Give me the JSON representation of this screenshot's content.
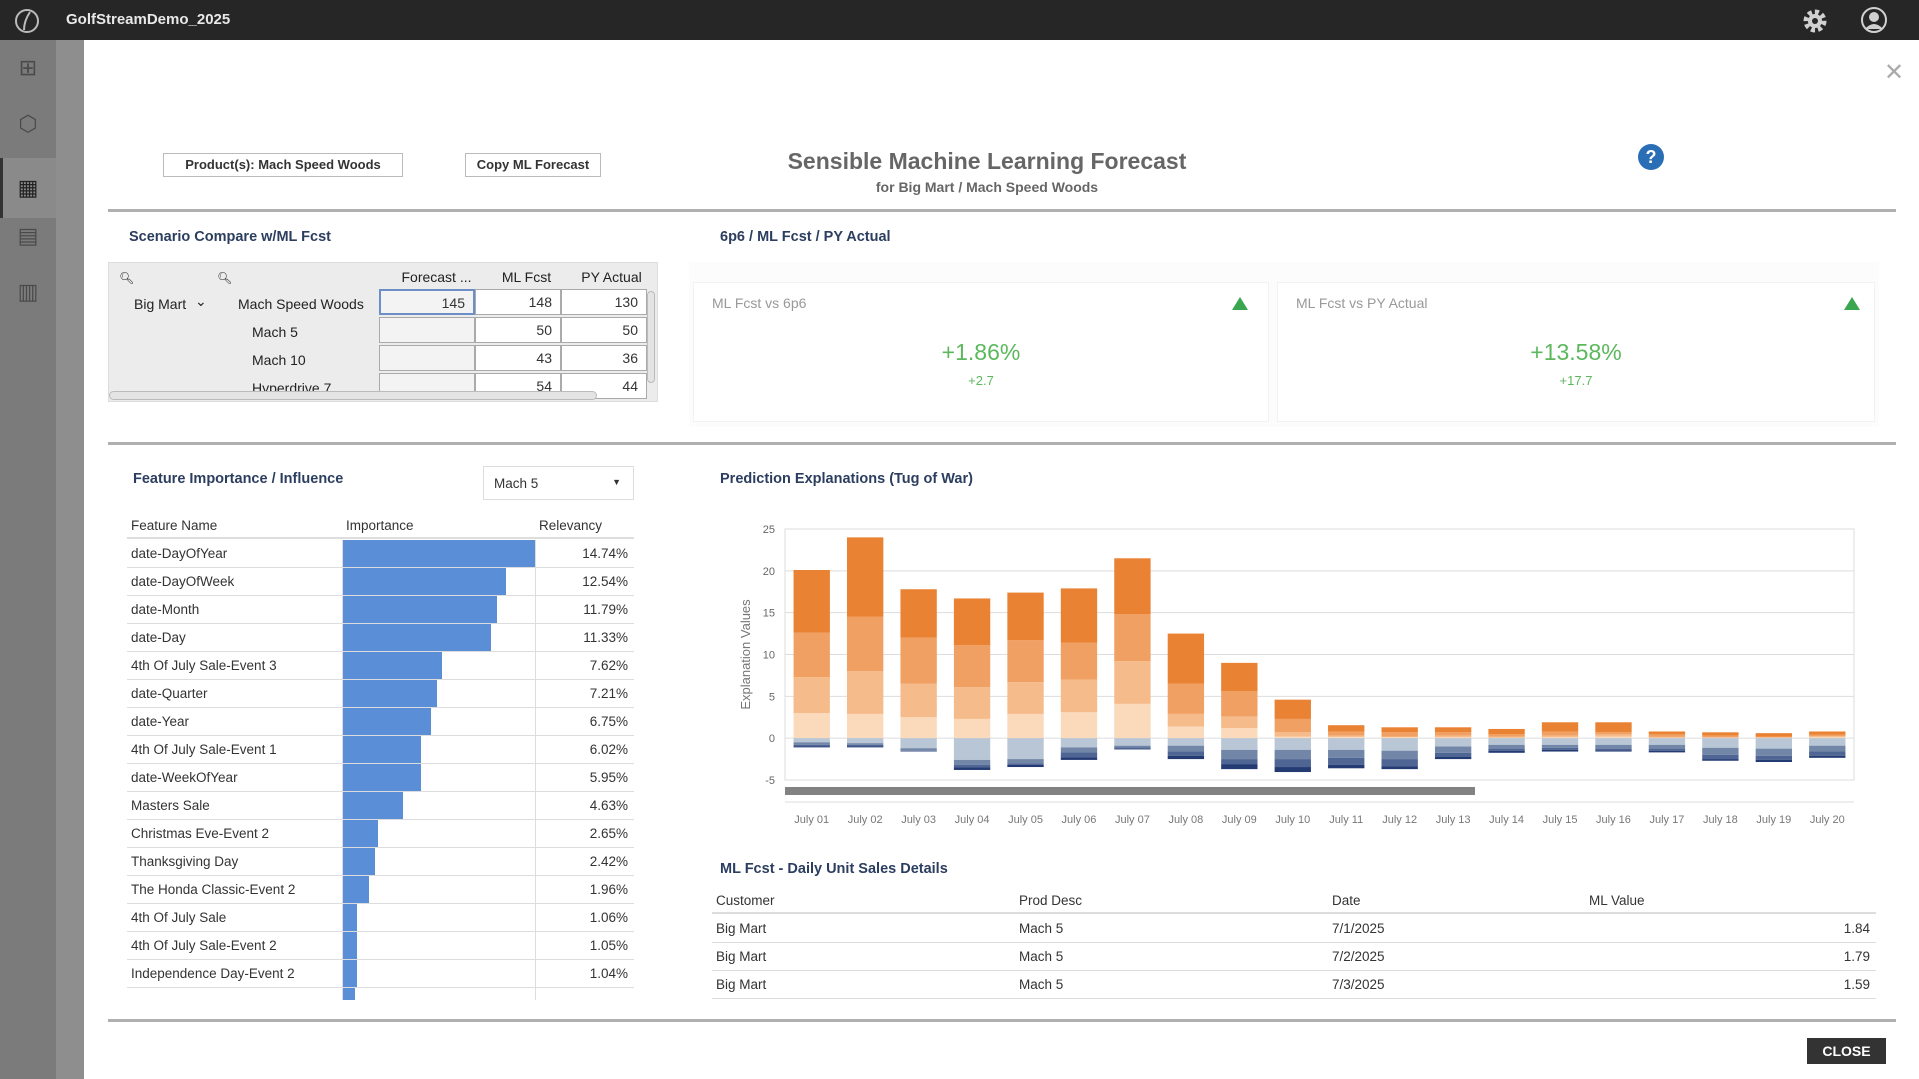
{
  "app": {
    "title": "GolfStreamDemo_2025"
  },
  "sidebar": {
    "icons": [
      "hierarchy-icon",
      "cube-icon",
      "dashboard-icon",
      "document-icon",
      "carousel-icon"
    ]
  },
  "header": {
    "product_button": "Product(s): Mach Speed Woods",
    "copy_button": "Copy ML Forecast",
    "title": "Sensible Machine Learning Forecast",
    "subtitle": "for Big Mart / Mach Speed Woods",
    "close_label": "CLOSE"
  },
  "scenario": {
    "title": "Scenario Compare w/ML Fcst",
    "columns": [
      "Forecast ...",
      "ML Fcst",
      "PY Actual"
    ],
    "rows": [
      {
        "customer": "Big Mart",
        "product": "Mach Speed Woods",
        "forecast": "145",
        "ml": "148",
        "py": "130"
      },
      {
        "customer": "",
        "product": "Mach 5",
        "forecast": "",
        "ml": "50",
        "py": "50"
      },
      {
        "customer": "",
        "product": "Mach 10",
        "forecast": "",
        "ml": "43",
        "py": "36"
      },
      {
        "customer": "",
        "product": "Hyperdrive 7",
        "forecast": "",
        "ml": "54",
        "py": "44"
      }
    ]
  },
  "kpi": {
    "title": "6p6 / ML Fcst / PY Actual",
    "cards": [
      {
        "label": "ML Fcst vs 6p6",
        "value": "+1.86%",
        "delta": "+2.7",
        "trend": "up"
      },
      {
        "label": "ML Fcst vs PY Actual",
        "value": "+13.58%",
        "delta": "+17.7",
        "trend": "up"
      }
    ],
    "up_color": "#3aa64f"
  },
  "features": {
    "title": "Feature Importance / Influence",
    "selected": "Mach 5",
    "columns": [
      "Feature Name",
      "Importance",
      "Relevancy"
    ],
    "bar_color": "#5a8fd8",
    "rows": [
      {
        "name": "date-DayOfYear",
        "value": 14.74,
        "label": "14.74%"
      },
      {
        "name": "date-DayOfWeek",
        "value": 12.54,
        "label": "12.54%"
      },
      {
        "name": "date-Month",
        "value": 11.79,
        "label": "11.79%"
      },
      {
        "name": "date-Day",
        "value": 11.33,
        "label": "11.33%"
      },
      {
        "name": "4th Of July Sale-Event 3",
        "value": 7.62,
        "label": "7.62%"
      },
      {
        "name": "date-Quarter",
        "value": 7.21,
        "label": "7.21%"
      },
      {
        "name": "date-Year",
        "value": 6.75,
        "label": "6.75%"
      },
      {
        "name": "4th Of July Sale-Event 1",
        "value": 6.02,
        "label": "6.02%"
      },
      {
        "name": "date-WeekOfYear",
        "value": 5.95,
        "label": "5.95%"
      },
      {
        "name": "Masters Sale",
        "value": 4.63,
        "label": "4.63%"
      },
      {
        "name": "Christmas Eve-Event 2",
        "value": 2.65,
        "label": "2.65%"
      },
      {
        "name": "Thanksgiving Day",
        "value": 2.42,
        "label": "2.42%"
      },
      {
        "name": "The Honda Classic-Event 2",
        "value": 1.96,
        "label": "1.96%"
      },
      {
        "name": "4th Of July Sale",
        "value": 1.06,
        "label": "1.06%"
      },
      {
        "name": "4th Of July Sale-Event 2",
        "value": 1.05,
        "label": "1.05%"
      },
      {
        "name": "Independence Day-Event 2",
        "value": 1.04,
        "label": "1.04%"
      }
    ]
  },
  "chart_data": {
    "type": "bar",
    "stacked": true,
    "title": "Prediction Explanations (Tug of War)",
    "ylabel": "Explanation Values",
    "xlabel": "",
    "ylim": [
      -5,
      25
    ],
    "yticks": [
      -5,
      0,
      5,
      10,
      15,
      20,
      25
    ],
    "grid": true,
    "categories": [
      "July 01",
      "July 02",
      "July 03",
      "July 04",
      "July 05",
      "July 06",
      "July 07",
      "July 08",
      "July 09",
      "July 10",
      "July 11",
      "July 12",
      "July 13",
      "July 14",
      "July 15",
      "July 16",
      "July 17",
      "July 18",
      "July 19",
      "July 20"
    ],
    "positive_colors": [
      "#fbd9bb",
      "#f5bb8b",
      "#f0a062",
      "#e98232"
    ],
    "negative_colors": [
      "#b8c6d6",
      "#7286a8",
      "#4f6594",
      "#243a73"
    ],
    "positive": [
      [
        3.0,
        4.3,
        5.3,
        7.5
      ],
      [
        2.9,
        5.1,
        6.5,
        9.5
      ],
      [
        2.5,
        4.0,
        5.5,
        5.8
      ],
      [
        2.3,
        3.8,
        5.0,
        5.6
      ],
      [
        2.9,
        3.8,
        5.0,
        5.7
      ],
      [
        3.1,
        3.9,
        4.4,
        6.5
      ],
      [
        4.1,
        5.1,
        5.6,
        6.7
      ],
      [
        1.4,
        1.5,
        3.6,
        6.0
      ],
      [
        1.2,
        1.4,
        3.0,
        3.4
      ],
      [
        0.2,
        0.5,
        1.6,
        2.3
      ],
      [
        0.15,
        0.15,
        0.5,
        0.75
      ],
      [
        0.1,
        0.1,
        0.5,
        0.6
      ],
      [
        0.1,
        0.2,
        0.4,
        0.6
      ],
      [
        0.05,
        0.15,
        0.3,
        0.6
      ],
      [
        0.1,
        0.2,
        0.5,
        1.1
      ],
      [
        0.2,
        0.25,
        0.25,
        1.2
      ],
      [
        0.05,
        0.1,
        0.3,
        0.35
      ],
      [
        0.05,
        0.05,
        0.2,
        0.4
      ],
      [
        0.05,
        0.05,
        0.1,
        0.4
      ],
      [
        0.1,
        0.15,
        0.15,
        0.4
      ]
    ],
    "negative": [
      [
        -0.5,
        -0.3,
        -0.2,
        -0.1
      ],
      [
        -0.6,
        -0.2,
        -0.2,
        -0.1
      ],
      [
        -1.2,
        -0.3,
        -0.05,
        -0.05
      ],
      [
        -2.6,
        -0.6,
        -0.3,
        -0.3
      ],
      [
        -2.5,
        -0.5,
        -0.2,
        -0.25
      ],
      [
        -1.1,
        -0.6,
        -0.6,
        -0.3
      ],
      [
        -0.9,
        -0.2,
        -0.2,
        -0.05
      ],
      [
        -0.9,
        -0.7,
        -0.5,
        -0.4
      ],
      [
        -1.4,
        -1.1,
        -0.6,
        -0.6
      ],
      [
        -1.4,
        -1.1,
        -0.95,
        -0.6
      ],
      [
        -1.4,
        -0.95,
        -0.85,
        -0.4
      ],
      [
        -1.5,
        -1.0,
        -0.85,
        -0.35
      ],
      [
        -1.0,
        -0.75,
        -0.5,
        -0.25
      ],
      [
        -0.8,
        -0.45,
        -0.25,
        -0.25
      ],
      [
        -0.8,
        -0.35,
        -0.25,
        -0.2
      ],
      [
        -0.8,
        -0.45,
        -0.2,
        -0.15
      ],
      [
        -0.8,
        -0.45,
        -0.25,
        -0.2
      ],
      [
        -1.15,
        -0.85,
        -0.5,
        -0.2
      ],
      [
        -1.25,
        -0.85,
        -0.5,
        -0.25
      ],
      [
        -0.9,
        -0.7,
        -0.5,
        -0.25
      ]
    ]
  },
  "details": {
    "title": "ML Fcst - Daily Unit Sales Details",
    "columns": [
      "Customer",
      "Prod Desc",
      "Date",
      "ML Value"
    ],
    "rows": [
      [
        "Big Mart",
        "Mach 5",
        "7/1/2025",
        "1.84"
      ],
      [
        "Big Mart",
        "Mach 5",
        "7/2/2025",
        "1.79"
      ],
      [
        "Big Mart",
        "Mach 5",
        "7/3/2025",
        "1.59"
      ]
    ]
  }
}
